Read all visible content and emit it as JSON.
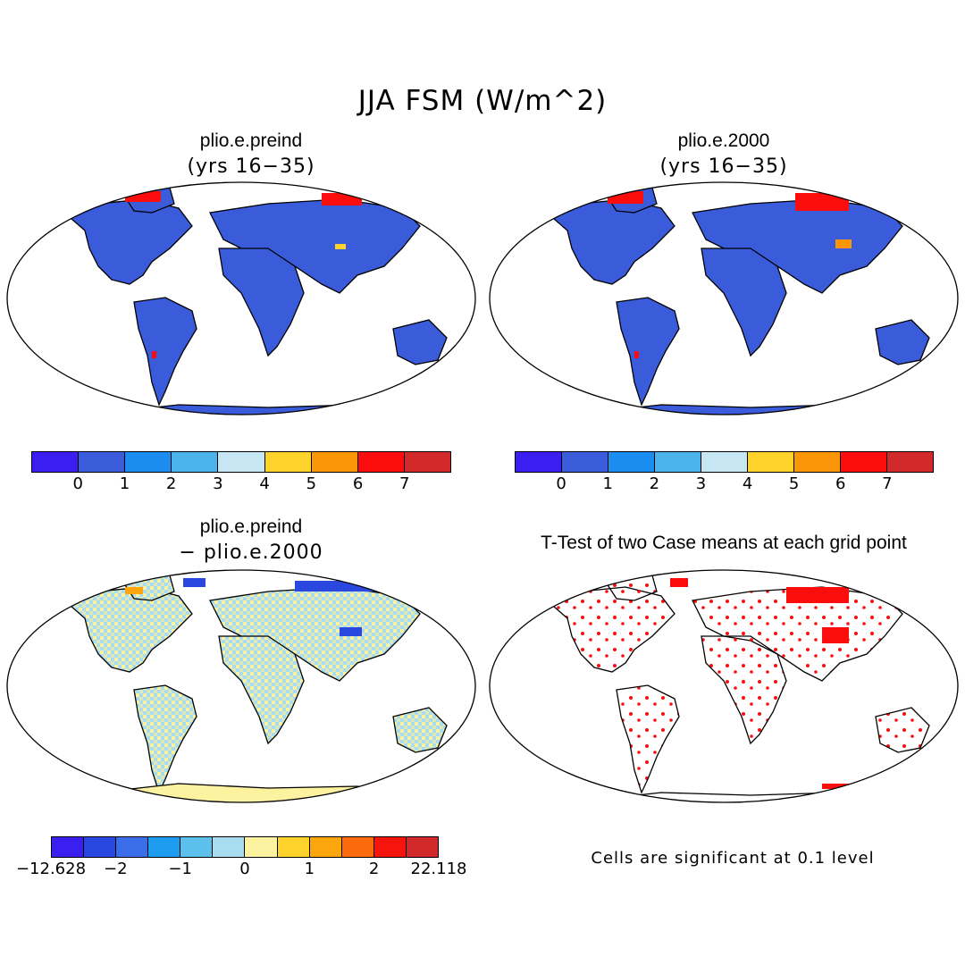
{
  "figure": {
    "title": "JJA FSM (W/m^2)"
  },
  "panels": [
    {
      "title": "plio.e.preind",
      "subtitle": "(yrs 16−35)"
    },
    {
      "title": "plio.e.2000",
      "subtitle": "(yrs 16−35)"
    },
    {
      "title": "plio.e.preind",
      "subtitle": "− plio.e.2000"
    },
    {
      "title": "T-Test of two Case means at each grid point",
      "subtitle": ""
    }
  ],
  "colorbars": {
    "top": {
      "colors": [
        "#3b1ff0",
        "#3a5cdb",
        "#1b8cf0",
        "#4cb4ec",
        "#c6e6f4",
        "#fdd22b",
        "#fb9609",
        "#fc0d0d",
        "#d22a2a"
      ],
      "ticks": [
        "0",
        "1",
        "2",
        "3",
        "4",
        "5",
        "6",
        "7"
      ]
    },
    "diff": {
      "colors": [
        "#3b1ff0",
        "#2a48e0",
        "#3a6ee8",
        "#1e9cf0",
        "#5bc0ec",
        "#a9dcef",
        "#fdf2a0",
        "#fdd22b",
        "#fca50d",
        "#fb6a0b",
        "#f6150d",
        "#d22a2a"
      ],
      "ticks": [
        "−12.628",
        "−2",
        "−1",
        "0",
        "1",
        "2",
        "22.118"
      ]
    }
  },
  "note": "Cells are significant at 0.1 level"
}
